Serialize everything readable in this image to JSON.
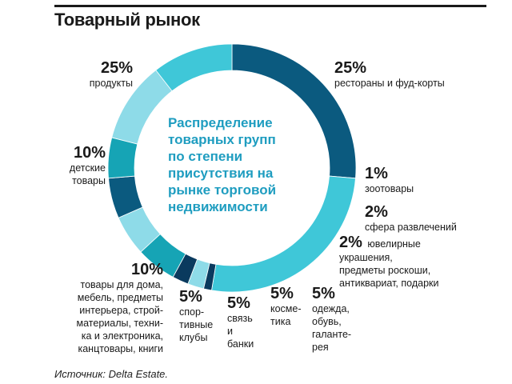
{
  "title": "Товарный рынок",
  "center_lines": [
    "Распределение",
    "товарных групп",
    "по степени",
    "присутствия на",
    "рынке торговой",
    "недвижимости"
  ],
  "source": "Источник: Delta Estate.",
  "colors": {
    "dark": "#0b5a7f",
    "navy": "#0a3a5e",
    "cyan": "#3fc7d8",
    "light": "#8edbe8",
    "teal": "#16a4b5",
    "center_text": "#1f9dc0"
  },
  "chart_data": {
    "type": "pie",
    "donut": true,
    "title": "Распределение товарных групп по степени присутствия на рынке торговой недвижимости",
    "unit": "%",
    "slices": [
      {
        "label": "продукты",
        "value": 25,
        "display": "25%",
        "color": "#0b5a7f"
      },
      {
        "label": "рестораны и фуд-корты",
        "value": 25,
        "display": "25%",
        "color": "#3fc7d8"
      },
      {
        "label": "зоотовары",
        "value": 1,
        "display": "1%",
        "color": "#0a3a5e"
      },
      {
        "label": "сфера развлечений",
        "value": 2,
        "display": "2%",
        "color": "#8edbe8"
      },
      {
        "label": "ювелирные украшения, предметы роскоши, антиквариат, подарки",
        "value": 2,
        "display": "2%",
        "color": "#0a3a5e"
      },
      {
        "label": "одежда, обувь, галантерея",
        "value": 5,
        "display": "5%",
        "color": "#16a4b5"
      },
      {
        "label": "косметика",
        "value": 5,
        "display": "5%",
        "color": "#8edbe8"
      },
      {
        "label": "связь и банки",
        "value": 5,
        "display": "5%",
        "color": "#0b5a7f"
      },
      {
        "label": "спортивные клубы",
        "value": 5,
        "display": "5%",
        "color": "#16a4b5"
      },
      {
        "label": "товары для дома, мебель, предметы интерьера, стройматериалы, техника и электроника, канцтовары, книги",
        "value": 10,
        "display": "10%",
        "color": "#8edbe8"
      },
      {
        "label": "детские товары",
        "value": 10,
        "display": "10%",
        "color": "#3fc7d8"
      }
    ]
  },
  "labels": {
    "produkty": {
      "pct": "25%",
      "text": "продукты"
    },
    "restorany": {
      "pct": "25%",
      "text": "рестораны и фуд-корты"
    },
    "zoo": {
      "pct": "1%",
      "text": "зоотовары"
    },
    "razvl": {
      "pct": "2%",
      "text": "сфера развлечений"
    },
    "yuvel": {
      "pct": "2%",
      "text": "ювелирные\nукрашения,\nпредметы роскоши,\nантиквариат, подарки"
    },
    "odezhda": {
      "pct": "5%",
      "text": "одежда,\nобувь,\nгаланте-\nрея"
    },
    "kosmetika": {
      "pct": "5%",
      "text": "косме-\nтика"
    },
    "svyaz": {
      "pct": "5%",
      "text": "связь\nи\nбанки"
    },
    "sport": {
      "pct": "5%",
      "text": "спор-\nтивные\nклубы"
    },
    "dom": {
      "pct": "10%",
      "text": "товары для дома,\nмебель, предметы\nинтерьера, строй-\nматериалы, техни-\nка и электроника,\nканцтовары, книги"
    },
    "detskie": {
      "pct": "10%",
      "text": "детские\nтовары"
    }
  }
}
